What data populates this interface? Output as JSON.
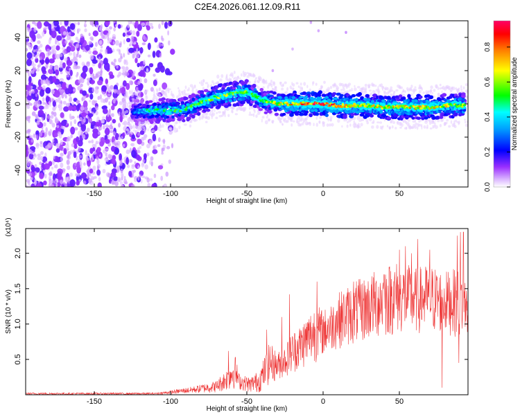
{
  "figure_title": "C2E4.2026.061.12.09.R11",
  "chart_data": [
    {
      "type": "heatmap",
      "title": "C2E4.2026.061.12.09.R11",
      "xlabel": "Height of straight line (km)",
      "ylabel": "Frequency (Hz)",
      "xlim": [
        -195,
        95
      ],
      "ylim": [
        -50,
        50
      ],
      "xticks": [
        -150,
        -100,
        -50,
        0,
        50
      ],
      "yticks": [
        -40,
        -20,
        0,
        20,
        40
      ],
      "colorbar": {
        "label": "Normalized spectral amplitude",
        "range": [
          0.0,
          0.95
        ],
        "ticks": [
          0.0,
          0.2,
          0.4,
          0.6,
          0.8
        ],
        "colormap": [
          "#ffffff",
          "#9b30ff",
          "#0000ff",
          "#00ffff",
          "#00ff00",
          "#ffff00",
          "#ff8000",
          "#ff0000",
          "#ff0066"
        ]
      },
      "ridge": {
        "description": "dominant frequency track",
        "x": [
          -125,
          -115,
          -100,
          -90,
          -80,
          -70,
          -60,
          -50,
          -45,
          -40,
          -30,
          -20,
          -10,
          0,
          10,
          20,
          30,
          40,
          50,
          60,
          70,
          80,
          90
        ],
        "y": [
          -5,
          -4,
          -4,
          -3,
          1,
          4,
          6,
          7,
          5,
          2,
          0,
          0,
          0,
          0,
          -1,
          -1,
          -1,
          -2,
          -2,
          -2,
          -2,
          -1,
          -1
        ],
        "peak_amplitude": [
          0.3,
          0.45,
          0.5,
          0.5,
          0.55,
          0.6,
          0.6,
          0.6,
          0.55,
          0.55,
          0.65,
          0.75,
          0.85,
          0.9,
          0.8,
          0.75,
          0.7,
          0.7,
          0.7,
          0.7,
          0.7,
          0.65,
          0.6
        ]
      },
      "noise_region": {
        "x_range": [
          -195,
          -108
        ],
        "amplitude": 0.25
      }
    },
    {
      "type": "line",
      "xlabel": "Height of straight line (km)",
      "ylabel": "SNR (10 * v/v)",
      "y_multiplier": "(x10⁴)",
      "xlim": [
        -195,
        95
      ],
      "ylim": [
        0,
        2.35
      ],
      "xticks": [
        -150,
        -100,
        -50,
        0,
        50
      ],
      "yticks": [
        0.5,
        1.0,
        1.5,
        2.0
      ],
      "ytick_labels": [
        "0.5",
        "1.0",
        "1.5",
        "2.0"
      ],
      "color": "#ee3333",
      "envelope": {
        "x": [
          -195,
          -110,
          -100,
          -85,
          -70,
          -62,
          -58,
          -55,
          -48,
          -42,
          -40,
          -35,
          -30,
          -25,
          -20,
          -15,
          -10,
          -5,
          0,
          5,
          10,
          20,
          30,
          40,
          50,
          60,
          70,
          80,
          90,
          95
        ],
        "low": [
          0.0,
          0.0,
          0.01,
          0.02,
          0.03,
          0.06,
          0.08,
          0.07,
          0.03,
          0.03,
          0.05,
          0.15,
          0.2,
          0.25,
          0.3,
          0.35,
          0.4,
          0.45,
          0.55,
          0.6,
          0.65,
          0.7,
          0.75,
          0.8,
          0.85,
          0.85,
          0.85,
          0.85,
          0.8,
          0.8
        ],
        "high": [
          0.03,
          0.03,
          0.06,
          0.12,
          0.2,
          0.4,
          0.6,
          0.3,
          0.25,
          0.35,
          0.45,
          0.75,
          0.6,
          0.7,
          0.9,
          1.0,
          1.15,
          1.3,
          1.2,
          1.3,
          1.45,
          1.6,
          1.7,
          1.85,
          1.9,
          1.8,
          1.85,
          1.75,
          1.8,
          1.6
        ]
      },
      "spikes": [
        {
          "x": -62,
          "y": 0.62
        },
        {
          "x": -37,
          "y": 0.92
        },
        {
          "x": -27,
          "y": 1.1
        },
        {
          "x": -22,
          "y": 1.42
        },
        {
          "x": -4,
          "y": 1.6
        },
        {
          "x": 5,
          "y": 1.1
        },
        {
          "x": 20,
          "y": 1.6
        },
        {
          "x": 40,
          "y": 1.7
        },
        {
          "x": 50,
          "y": 2.05
        },
        {
          "x": 54,
          "y": 2.1
        },
        {
          "x": 58,
          "y": 2.0
        },
        {
          "x": 62,
          "y": 2.2
        },
        {
          "x": 70,
          "y": 2.05
        },
        {
          "x": 78,
          "y": 2.1
        },
        {
          "x": 88,
          "y": 2.25
        },
        {
          "x": 90,
          "y": 2.3
        },
        {
          "x": 92,
          "y": 2.3
        }
      ],
      "dips": [
        {
          "x": 78,
          "y": 0.1
        },
        {
          "x": 89,
          "y": 0.45
        }
      ]
    }
  ]
}
